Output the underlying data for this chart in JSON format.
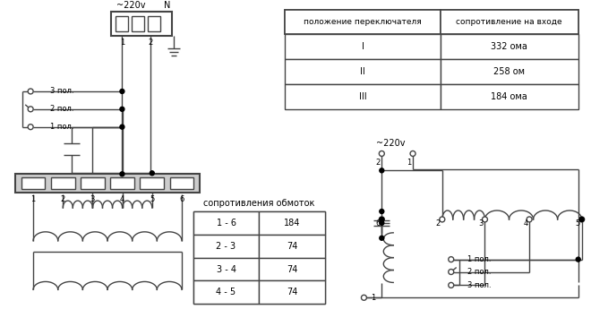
{
  "bg_color": "#ffffff",
  "table1": {
    "title": "положение переключателя",
    "col2": "сопротивление на входе",
    "rows": [
      [
        "I",
        "332 ома"
      ],
      [
        "II",
        "258 ом"
      ],
      [
        "III",
        "184 ома"
      ]
    ]
  },
  "table2": {
    "title": "сопротивления обмоток",
    "rows": [
      [
        "1 - 6",
        "184"
      ],
      [
        "2 - 3",
        "74"
      ],
      [
        "3 - 4",
        "74"
      ],
      [
        "4 - 5",
        "74"
      ]
    ]
  },
  "label_220v_left": "~220v",
  "label_N": "N",
  "label_220v_right": "~220v",
  "connector_labels": [
    "1",
    "2",
    "3",
    "4",
    "5",
    "6"
  ],
  "switch_labels_left": [
    "3 пол.",
    "2 пол.",
    "1 пол."
  ],
  "switch_labels_right": [
    "1 пол.",
    "2 пол.",
    "3 пол."
  ]
}
